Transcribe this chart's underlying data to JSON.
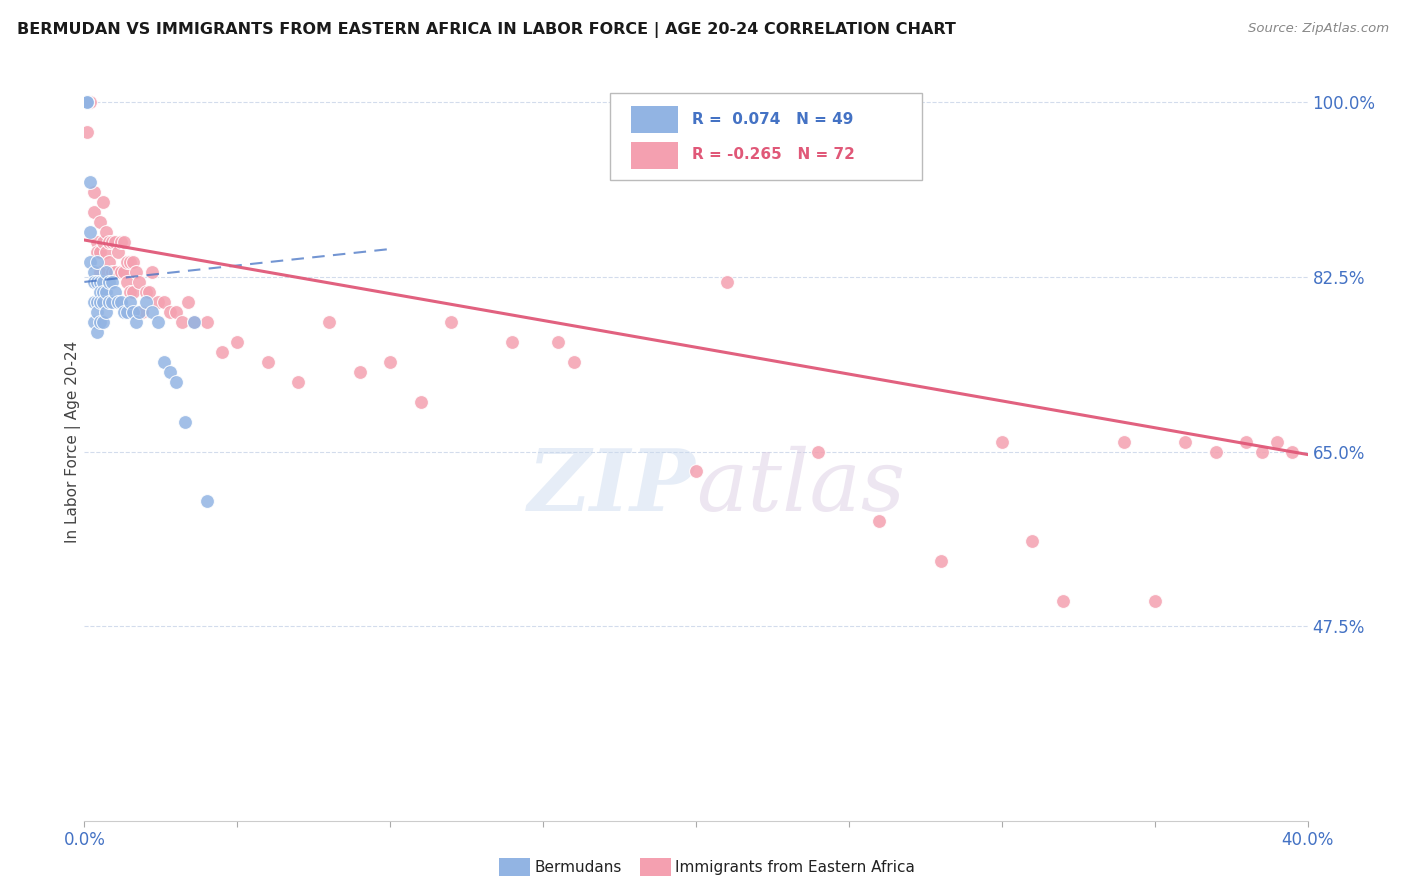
{
  "title": "BERMUDAN VS IMMIGRANTS FROM EASTERN AFRICA IN LABOR FORCE | AGE 20-24 CORRELATION CHART",
  "source": "Source: ZipAtlas.com",
  "ylabel": "In Labor Force | Age 20-24",
  "xlim": [
    0.0,
    0.4
  ],
  "ylim": [
    0.28,
    1.04
  ],
  "yticks": [
    0.475,
    0.65,
    0.825,
    1.0
  ],
  "ytick_labels": [
    "47.5%",
    "65.0%",
    "82.5%",
    "100.0%"
  ],
  "xticks": [
    0.0,
    0.05,
    0.1,
    0.15,
    0.2,
    0.25,
    0.3,
    0.35,
    0.4
  ],
  "xtick_labels_show": [
    "0.0%",
    "",
    "",
    "",
    "",
    "",
    "",
    "",
    "40.0%"
  ],
  "color_blue": "#92b4e3",
  "color_pink": "#f4a0b0",
  "color_blue_line": "#4472c4",
  "color_pink_line": "#e05878",
  "color_axis_text": "#4472c4",
  "blue_trend_x": [
    0.0,
    0.1
  ],
  "blue_trend_y": [
    0.82,
    0.853
  ],
  "pink_trend_x": [
    0.0,
    0.4
  ],
  "pink_trend_y": [
    0.862,
    0.647
  ],
  "blue_scatter_x": [
    0.001,
    0.001,
    0.001,
    0.001,
    0.002,
    0.002,
    0.002,
    0.003,
    0.003,
    0.003,
    0.003,
    0.004,
    0.004,
    0.004,
    0.004,
    0.004,
    0.005,
    0.005,
    0.005,
    0.005,
    0.006,
    0.006,
    0.006,
    0.006,
    0.007,
    0.007,
    0.007,
    0.008,
    0.008,
    0.009,
    0.009,
    0.01,
    0.011,
    0.012,
    0.013,
    0.014,
    0.015,
    0.016,
    0.017,
    0.018,
    0.02,
    0.022,
    0.024,
    0.026,
    0.028,
    0.03,
    0.033,
    0.036,
    0.04
  ],
  "blue_scatter_y": [
    1.0,
    1.0,
    1.0,
    1.0,
    0.92,
    0.87,
    0.84,
    0.83,
    0.82,
    0.8,
    0.78,
    0.84,
    0.82,
    0.8,
    0.79,
    0.77,
    0.82,
    0.81,
    0.8,
    0.78,
    0.82,
    0.81,
    0.8,
    0.78,
    0.83,
    0.81,
    0.79,
    0.82,
    0.8,
    0.82,
    0.8,
    0.81,
    0.8,
    0.8,
    0.79,
    0.79,
    0.8,
    0.79,
    0.78,
    0.79,
    0.8,
    0.79,
    0.78,
    0.74,
    0.73,
    0.72,
    0.68,
    0.78,
    0.6
  ],
  "pink_scatter_x": [
    0.001,
    0.002,
    0.003,
    0.003,
    0.004,
    0.004,
    0.005,
    0.005,
    0.005,
    0.006,
    0.006,
    0.007,
    0.007,
    0.008,
    0.008,
    0.009,
    0.009,
    0.01,
    0.01,
    0.011,
    0.012,
    0.012,
    0.013,
    0.013,
    0.014,
    0.014,
    0.015,
    0.015,
    0.016,
    0.016,
    0.017,
    0.018,
    0.019,
    0.02,
    0.021,
    0.022,
    0.024,
    0.026,
    0.028,
    0.03,
    0.032,
    0.034,
    0.036,
    0.04,
    0.045,
    0.05,
    0.06,
    0.07,
    0.08,
    0.09,
    0.1,
    0.11,
    0.12,
    0.14,
    0.155,
    0.16,
    0.2,
    0.21,
    0.24,
    0.26,
    0.28,
    0.3,
    0.31,
    0.32,
    0.34,
    0.35,
    0.36,
    0.37,
    0.38,
    0.385,
    0.39,
    0.395
  ],
  "pink_scatter_y": [
    0.97,
    1.0,
    0.89,
    0.91,
    0.86,
    0.85,
    0.88,
    0.85,
    0.83,
    0.9,
    0.86,
    0.87,
    0.85,
    0.86,
    0.84,
    0.86,
    0.83,
    0.86,
    0.83,
    0.85,
    0.86,
    0.83,
    0.86,
    0.83,
    0.84,
    0.82,
    0.84,
    0.81,
    0.84,
    0.81,
    0.83,
    0.82,
    0.79,
    0.81,
    0.81,
    0.83,
    0.8,
    0.8,
    0.79,
    0.79,
    0.78,
    0.8,
    0.78,
    0.78,
    0.75,
    0.76,
    0.74,
    0.72,
    0.78,
    0.73,
    0.74,
    0.7,
    0.78,
    0.76,
    0.76,
    0.74,
    0.63,
    0.82,
    0.65,
    0.58,
    0.54,
    0.66,
    0.56,
    0.5,
    0.66,
    0.5,
    0.66,
    0.65,
    0.66,
    0.65,
    0.66,
    0.65
  ]
}
